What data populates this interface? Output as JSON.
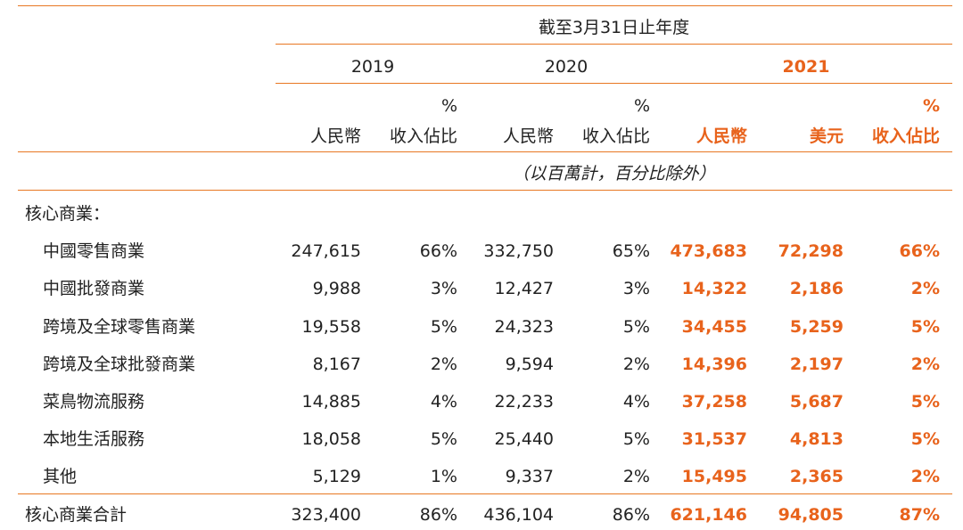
{
  "header": {
    "period": "截至3月31日止年度",
    "unit_note": "（以百萬計，百分比除外）",
    "years": [
      "2019",
      "2020",
      "2021"
    ],
    "pct_symbol": "%",
    "col_rmb": "人民幣",
    "col_usd": "美元",
    "col_share": "收入佔比"
  },
  "section_title": "核心商業：",
  "rows": [
    {
      "label": "中國零售商業",
      "v2019": "247,615",
      "p2019": "66%",
      "v2020": "332,750",
      "p2020": "65%",
      "rmb2021": "473,683",
      "usd2021": "72,298",
      "p2021": "66%"
    },
    {
      "label": "中國批發商業",
      "v2019": "9,988",
      "p2019": "3%",
      "v2020": "12,427",
      "p2020": "3%",
      "rmb2021": "14,322",
      "usd2021": "2,186",
      "p2021": "2%"
    },
    {
      "label": "跨境及全球零售商業",
      "v2019": "19,558",
      "p2019": "5%",
      "v2020": "24,323",
      "p2020": "5%",
      "rmb2021": "34,455",
      "usd2021": "5,259",
      "p2021": "5%"
    },
    {
      "label": "跨境及全球批發商業",
      "v2019": "8,167",
      "p2019": "2%",
      "v2020": "9,594",
      "p2020": "2%",
      "rmb2021": "14,396",
      "usd2021": "2,197",
      "p2021": "2%"
    },
    {
      "label": "菜鳥物流服務",
      "v2019": "14,885",
      "p2019": "4%",
      "v2020": "22,233",
      "p2020": "4%",
      "rmb2021": "37,258",
      "usd2021": "5,687",
      "p2021": "5%"
    },
    {
      "label": "本地生活服務",
      "v2019": "18,058",
      "p2019": "5%",
      "v2020": "25,440",
      "p2020": "5%",
      "rmb2021": "31,537",
      "usd2021": "4,813",
      "p2021": "5%"
    },
    {
      "label": "其他",
      "v2019": "5,129",
      "p2019": "1%",
      "v2020": "9,337",
      "p2020": "2%",
      "rmb2021": "15,495",
      "usd2021": "2,365",
      "p2021": "2%"
    }
  ],
  "total": {
    "label": "核心商業合計",
    "v2019": "323,400",
    "p2019": "86%",
    "v2020": "436,104",
    "p2020": "86%",
    "rmb2021": "621,146",
    "usd2021": "94,805",
    "p2021": "87%"
  },
  "colors": {
    "accent_line": "#e87722",
    "highlight_text": "#e8631c",
    "text": "#222222"
  }
}
